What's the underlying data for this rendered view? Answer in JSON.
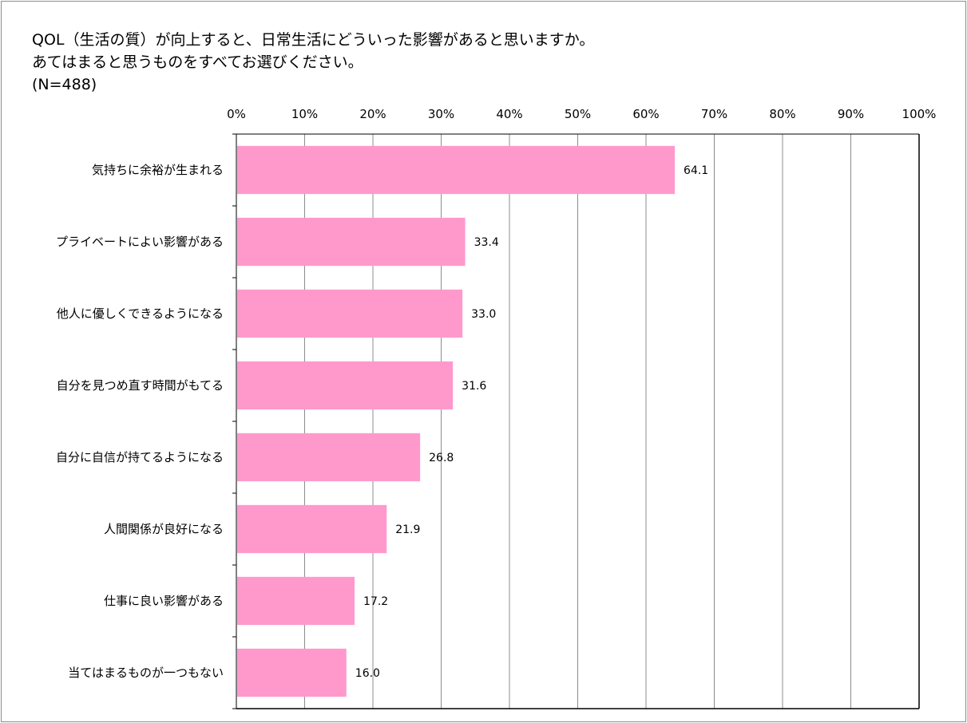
{
  "chart_data": {
    "type": "bar",
    "orientation": "horizontal",
    "title": "QOL（生活の質）が向上すると、日常生活にどういった影響があると思いますか。",
    "subtitle": "あてはまると思うものをすべてお選びください。",
    "sample_note": "(N=488)",
    "categories": [
      "気持ちに余裕が生まれる",
      "プライベートによい影響がある",
      "他人に優しくできるようになる",
      "自分を見つめ直す時間がもてる",
      "自分に自信が持てるようになる",
      "人間関係が良好になる",
      "仕事に良い影響がある",
      "当てはまるものが一つもない"
    ],
    "values": [
      64.1,
      33.4,
      33.0,
      31.6,
      26.8,
      21.9,
      17.2,
      16.0
    ],
    "data_labels": [
      "64.1",
      "33.4",
      "33.0",
      "31.6",
      "26.8",
      "21.9",
      "17.2",
      "16.0"
    ],
    "x_ticks": [
      "0%",
      "10%",
      "20%",
      "30%",
      "40%",
      "50%",
      "60%",
      "70%",
      "80%",
      "90%",
      "100%"
    ],
    "xlim": [
      0,
      100
    ],
    "xlabel": "",
    "ylabel": "",
    "grid": true,
    "legend": "none",
    "bar_color": "#ff99cc",
    "grid_color": "#8c8c8c",
    "axis_color": "#000000"
  }
}
